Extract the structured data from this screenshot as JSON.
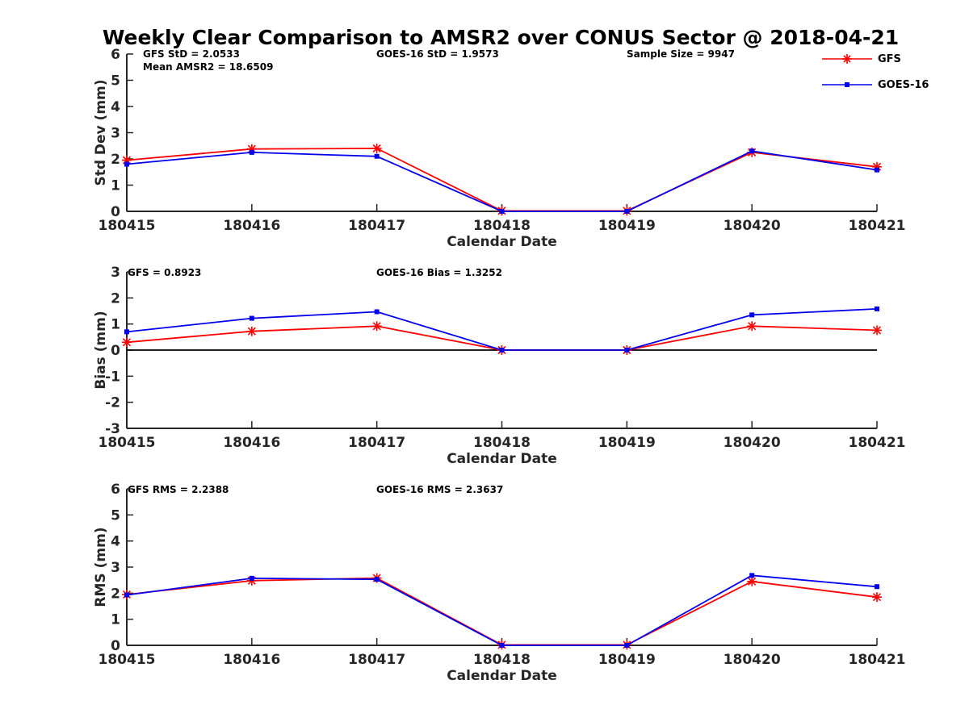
{
  "title": "Weekly Clear Comparison to AMSR2 over CONUS Sector @ 2018-04-21",
  "colors": {
    "GFS": "#ff0000",
    "GOES-16": "#0000ee",
    "axis": "#262626",
    "zero_line": "#000000"
  },
  "legend": {
    "placement": "top-right",
    "entries": [
      {
        "label": "GFS",
        "marker": "asterisk"
      },
      {
        "label": "GOES-16",
        "marker": "square"
      }
    ]
  },
  "annotations": {
    "std": {
      "gfs": "GFS StD = 2.0533",
      "mean": "Mean AMSR2 = 18.6509",
      "goes": "GOES-16 StD = 1.9573",
      "sample": "Sample Size = 9947"
    },
    "bias": {
      "gfs": "GFS = 0.8923",
      "goes": "GOES-16 Bias  = 1.3252"
    },
    "rms": {
      "gfs": "GFS RMS = 2.2388",
      "goes": "GOES-16 RMS = 2.3637"
    }
  },
  "chart_data": [
    {
      "type": "line",
      "panel": "std",
      "categories": [
        "180415",
        "180416",
        "180417",
        "180418",
        "180419",
        "180420",
        "180421"
      ],
      "xlabel": "Calendar Date",
      "ylabel": "Std Dev (mm)",
      "ylim": [
        0,
        6
      ],
      "yticks": [
        "0",
        "1",
        "2",
        "3",
        "4",
        "5",
        "6"
      ],
      "zero_line": false,
      "series": [
        {
          "name": "GFS",
          "values": [
            1.95,
            2.38,
            2.4,
            0.02,
            0.02,
            2.25,
            1.7
          ]
        },
        {
          "name": "GOES-16",
          "values": [
            1.8,
            2.25,
            2.1,
            0.0,
            0.0,
            2.3,
            1.58
          ]
        }
      ]
    },
    {
      "type": "line",
      "panel": "bias",
      "categories": [
        "180415",
        "180416",
        "180417",
        "180418",
        "180419",
        "180420",
        "180421"
      ],
      "xlabel": "Calendar Date",
      "ylabel": "Bias (mm)",
      "ylim": [
        -3,
        3
      ],
      "yticks": [
        "-3",
        "-2",
        "-1",
        "0",
        "1",
        "2",
        "3"
      ],
      "zero_line": true,
      "series": [
        {
          "name": "GFS",
          "values": [
            0.3,
            0.72,
            0.92,
            0.0,
            0.0,
            0.92,
            0.76
          ]
        },
        {
          "name": "GOES-16",
          "values": [
            0.7,
            1.22,
            1.47,
            0.0,
            0.0,
            1.35,
            1.58
          ]
        }
      ]
    },
    {
      "type": "line",
      "panel": "rms",
      "categories": [
        "180415",
        "180416",
        "180417",
        "180418",
        "180419",
        "180420",
        "180421"
      ],
      "xlabel": "Calendar Date",
      "ylabel": "RMS (mm)",
      "ylim": [
        0,
        6
      ],
      "yticks": [
        "0",
        "1",
        "2",
        "3",
        "4",
        "5",
        "6"
      ],
      "zero_line": false,
      "series": [
        {
          "name": "GFS",
          "values": [
            1.95,
            2.48,
            2.58,
            0.02,
            0.02,
            2.45,
            1.85
          ]
        },
        {
          "name": "GOES-16",
          "values": [
            1.93,
            2.57,
            2.53,
            0.0,
            0.0,
            2.68,
            2.25
          ]
        }
      ]
    }
  ]
}
